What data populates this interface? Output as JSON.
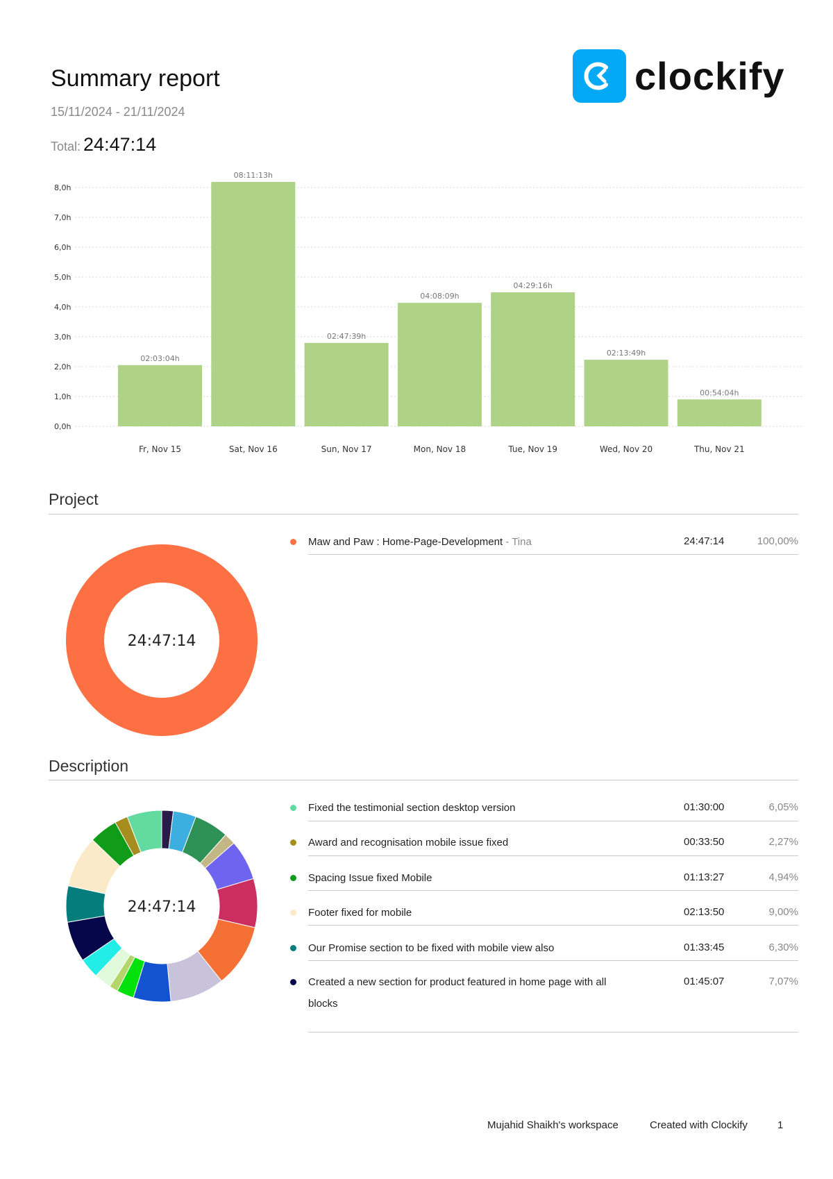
{
  "header": {
    "title": "Summary report",
    "date_range": "15/11/2024 - 21/11/2024",
    "total_label": "Total:",
    "total_value": "24:47:14",
    "logo_text": "clockify",
    "logo_color": "#03a9f4"
  },
  "chart_data": {
    "type": "bar",
    "categories": [
      "Fr, Nov 15",
      "Sat, Nov 16",
      "Sun, Nov 17",
      "Mon, Nov 18",
      "Tue, Nov 19",
      "Wed, Nov 20",
      "Thu, Nov 21"
    ],
    "values": [
      2.051,
      8.187,
      2.794,
      4.136,
      4.488,
      2.23,
      0.901
    ],
    "data_labels": [
      "02:03:04h",
      "08:11:13h",
      "02:47:39h",
      "04:08:09h",
      "04:29:16h",
      "02:13:49h",
      "00:54:04h"
    ],
    "y_ticks": [
      "0,0h",
      "1,0h",
      "2,0h",
      "3,0h",
      "4,0h",
      "5,0h",
      "6,0h",
      "7,0h",
      "8,0h"
    ],
    "ylim": [
      0,
      8
    ],
    "grid": true,
    "bar_color": "#aed387"
  },
  "project": {
    "heading": "Project",
    "donut_center": "24:47:14",
    "items": [
      {
        "name": "Maw and Paw : Home-Page-Development",
        "client": " - Tina",
        "time": "24:47:14",
        "percent": "100,00%",
        "color": "#fd7043",
        "share": 100
      }
    ]
  },
  "description": {
    "heading": "Description",
    "donut_center": "24:47:14",
    "items": [
      {
        "name": "Fixed the testimonial section desktop version",
        "time": "01:30:00",
        "percent": "6,05%",
        "color": "#63dba0"
      },
      {
        "name": "Award and recognisation mobile issue fixed",
        "time": "00:33:50",
        "percent": "2,27%",
        "color": "#a58e1f"
      },
      {
        "name": "Spacing Issue fixed Mobile",
        "time": "01:13:27",
        "percent": "4,94%",
        "color": "#109b19"
      },
      {
        "name": "Footer fixed for mobile",
        "time": "02:13:50",
        "percent": "9,00%",
        "color": "#faeac7"
      },
      {
        "name": "Our Promise section to be fixed with mobile view also",
        "time": "01:33:45",
        "percent": "6,30%",
        "color": "#057d7d"
      },
      {
        "name": "Created a new section for product featured in home page with all blocks",
        "time": "01:45:07",
        "percent": "7,07%",
        "color": "#06064a"
      }
    ],
    "donut_segments": [
      {
        "color": "#2a1a4a",
        "share": 2.0
      },
      {
        "color": "#3daee0",
        "share": 4.0
      },
      {
        "color": "#2e9155",
        "share": 6.0
      },
      {
        "color": "#c2b785",
        "share": 2.0
      },
      {
        "color": "#6e64f0",
        "share": 7.0
      },
      {
        "color": "#cb2f60",
        "share": 8.5
      },
      {
        "color": "#f47035",
        "share": 11.0
      },
      {
        "color": "#c8c2da",
        "share": 9.5
      },
      {
        "color": "#1353cf",
        "share": 6.5
      },
      {
        "color": "#03e10c",
        "share": 3.0
      },
      {
        "color": "#b4d56a",
        "share": 1.5
      },
      {
        "color": "#e1fadb",
        "share": 3.0
      },
      {
        "color": "#22ede6",
        "share": 3.5
      },
      {
        "color": "#06064a",
        "share": 7.07
      },
      {
        "color": "#057d7d",
        "share": 6.3
      },
      {
        "color": "#faeac7",
        "share": 9.0
      },
      {
        "color": "#109b19",
        "share": 4.94
      },
      {
        "color": "#a58e1f",
        "share": 2.27
      },
      {
        "color": "#63dba0",
        "share": 6.05
      }
    ]
  },
  "footer": {
    "workspace": "Mujahid Shaikh's workspace",
    "created_with": "Created with Clockify",
    "page": "1"
  }
}
